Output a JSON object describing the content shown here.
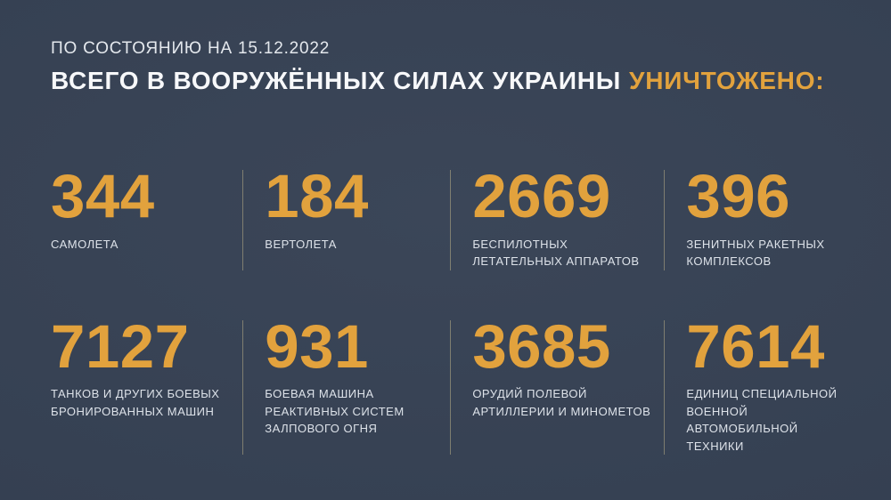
{
  "header": {
    "date_line": "ПО СОСТОЯНИЮ НА 15.12.2022",
    "title_main": "ВСЕГО В ВООРУЖЁННЫХ СИЛАХ УКРАИНЫ",
    "title_accent": "УНИЧТОЖЕНО:"
  },
  "stats": [
    {
      "value": "344",
      "label": "САМОЛЕТА"
    },
    {
      "value": "184",
      "label": "ВЕРТОЛЕТА"
    },
    {
      "value": "2669",
      "label": "БЕСПИЛОТНЫХ\nЛЕТАТЕЛЬНЫХ АППАРАТОВ"
    },
    {
      "value": "396",
      "label": "ЗЕНИТНЫХ РАКЕТНЫХ\nКОМПЛЕКСОВ"
    },
    {
      "value": "7127",
      "label": "ТАНКОВ И ДРУГИХ БОЕВЫХ\nБРОНИРОВАННЫХ МАШИН"
    },
    {
      "value": "931",
      "label": "БОЕВАЯ МАШИНА\nРЕАКТИВНЫХ СИСТЕМ\nЗАЛПОВОГО ОГНЯ"
    },
    {
      "value": "3685",
      "label": "ОРУДИЙ ПОЛЕВОЙ\nАРТИЛЛЕРИИ И МИНОМЕТОВ"
    },
    {
      "value": "7614",
      "label": "ЕДИНИЦ СПЕЦИАЛЬНОЙ\nВОЕННОЙ АВТОМОБИЛЬНОЙ\nТЕХНИКИ"
    }
  ],
  "colors": {
    "background": "#364153",
    "accent_orange": "#E2A23D",
    "divider_tan": "#BAAE86",
    "text_light": "#E4E8ED",
    "title_white": "#F7F8FA"
  },
  "chart_data": {
    "type": "table",
    "title": "ВСЕГО В ВООРУЖЁННЫХ СИЛАХ УКРАИНЫ УНИЧТОЖЕНО:",
    "subtitle": "ПО СОСТОЯНИЮ НА 15.12.2022",
    "categories": [
      "САМОЛЕТА",
      "ВЕРТОЛЕТА",
      "БЕСПИЛОТНЫХ ЛЕТАТЕЛЬНЫХ АППАРАТОВ",
      "ЗЕНИТНЫХ РАКЕТНЫХ КОМПЛЕКСОВ",
      "ТАНКОВ И ДРУГИХ БОЕВЫХ БРОНИРОВАННЫХ МАШИН",
      "БОЕВАЯ МАШИНА РЕАКТИВНЫХ СИСТЕМ ЗАЛПОВОГО ОГНЯ",
      "ОРУДИЙ ПОЛЕВОЙ АРТИЛЛЕРИИ И МИНОМЕТОВ",
      "ЕДИНИЦ СПЕЦИАЛЬНОЙ ВОЕННОЙ АВТОМОБИЛЬНОЙ ТЕХНИКИ"
    ],
    "values": [
      344,
      184,
      2669,
      396,
      7127,
      931,
      3685,
      7614
    ],
    "layout": "2 rows x 4 columns grid, value above label, tan vertical dividers between columns"
  }
}
